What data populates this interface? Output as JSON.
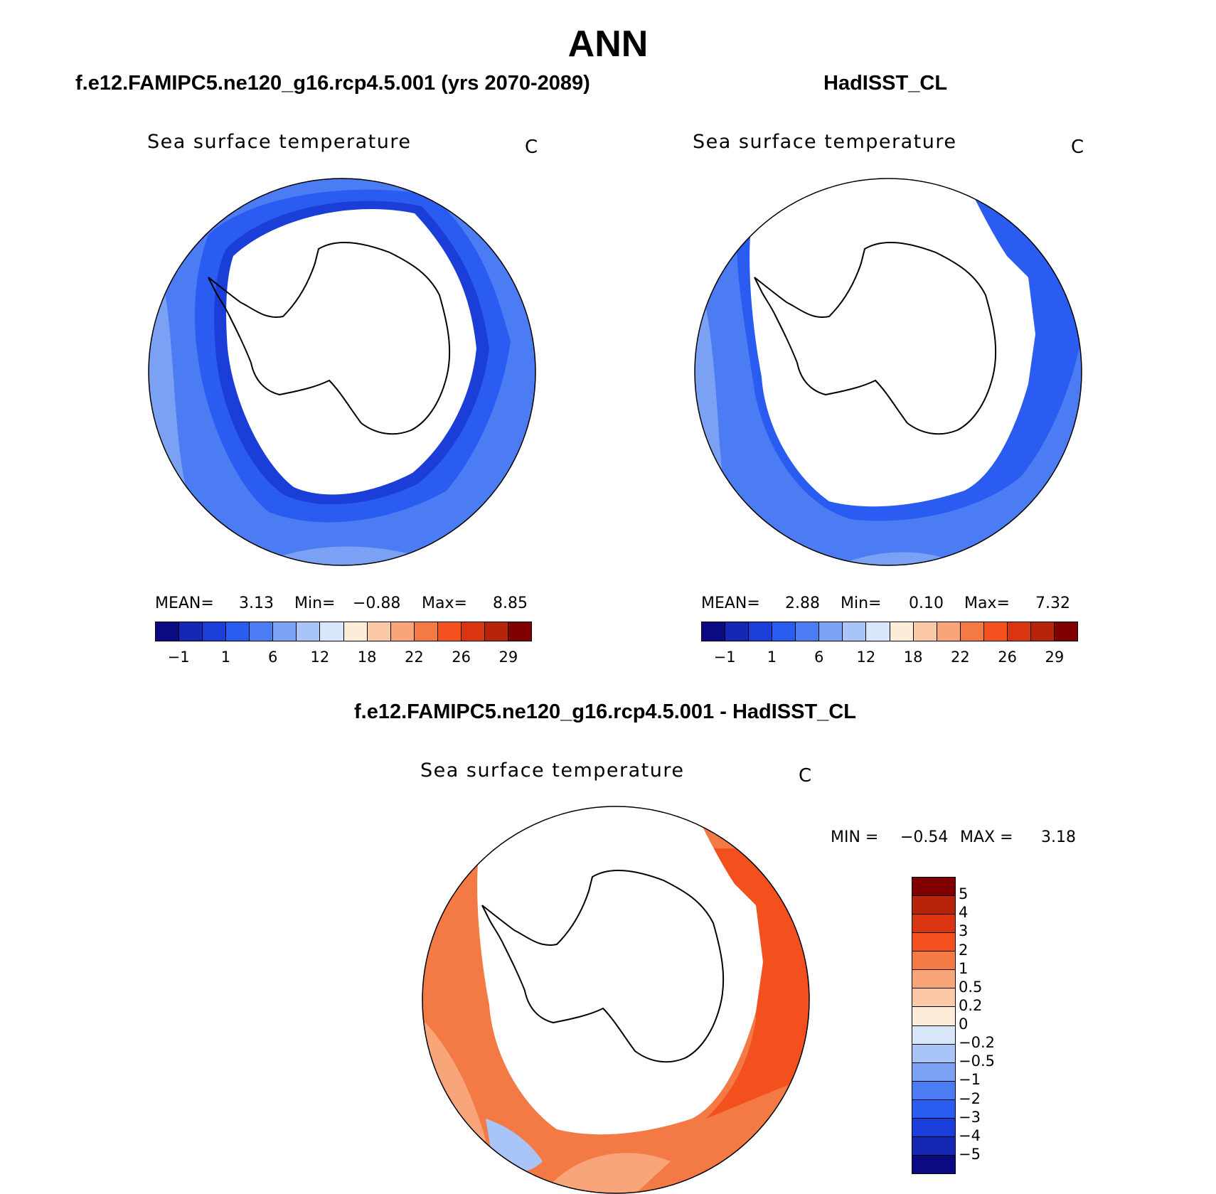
{
  "figure": {
    "title": "ANN"
  },
  "colors": {
    "abs_scale": [
      "#0a0a82",
      "#1428b4",
      "#1a3ed7",
      "#2b5cf2",
      "#4c7cf4",
      "#7aa1f3",
      "#a9c4f7",
      "#d8e8fa",
      "#fdecd8",
      "#fbc9a8",
      "#f8a57a",
      "#f37a45",
      "#f3501e",
      "#da3512",
      "#b8240b",
      "#800000"
    ],
    "diff_scale": [
      "#800000",
      "#b8240b",
      "#da3512",
      "#f3501e",
      "#f37a45",
      "#f8a57a",
      "#fbc9a8",
      "#fdecd8",
      "#d8e8fa",
      "#a9c4f7",
      "#7aa1f3",
      "#4c7cf4",
      "#2b5cf2",
      "#1a3ed7",
      "#1428b4",
      "#0a0a82"
    ]
  },
  "panels": {
    "model": {
      "title": "f.e12.FAMIPC5.ne120_g16.rcp4.5.001 (yrs 2070-2089)",
      "variable": "Sea surface temperature",
      "unit": "C",
      "mean_label": "MEAN=",
      "mean_value": "3.13",
      "min_label": "Min=",
      "min_value": "−0.88",
      "max_label": "Max=",
      "max_value": "8.85",
      "ticks": [
        "−1",
        "1",
        "6",
        "12",
        "18",
        "22",
        "26",
        "29"
      ]
    },
    "obs": {
      "title": "HadISST_CL",
      "variable": "Sea surface temperature",
      "unit": "C",
      "mean_label": "MEAN=",
      "mean_value": "2.88",
      "min_label": "Min=",
      "min_value": "0.10",
      "max_label": "Max=",
      "max_value": "7.32",
      "ticks": [
        "−1",
        "1",
        "6",
        "12",
        "18",
        "22",
        "26",
        "29"
      ]
    },
    "diff": {
      "title": "f.e12.FAMIPC5.ne120_g16.rcp4.5.001 - HadISST_CL",
      "variable": "Sea surface temperature",
      "unit": "C",
      "min_label": "MIN =",
      "min_value": "−0.54",
      "max_label": "MAX =",
      "max_value": "3.18",
      "ticks": [
        "5",
        "4",
        "3",
        "2",
        "1",
        "0.5",
        "0.2",
        "0",
        "−0.2",
        "−0.5",
        "−1",
        "−2",
        "−3",
        "−4",
        "−5"
      ]
    }
  }
}
